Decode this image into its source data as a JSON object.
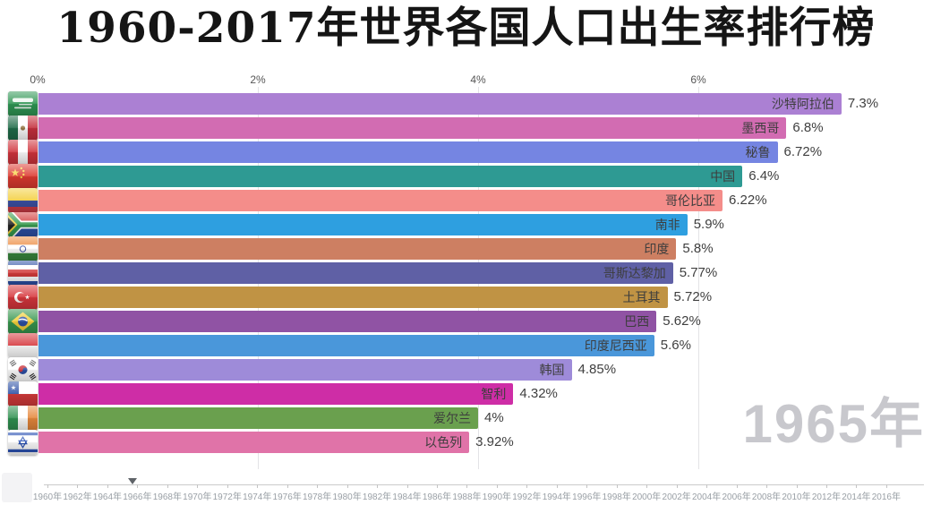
{
  "chart_data": {
    "type": "bar",
    "orientation": "horizontal-ranked",
    "title": "1960-2017年世界各国人口出生率排行榜",
    "current_year": "1965年",
    "value_unit": "%",
    "x_axis": {
      "tick_labels": [
        "0%",
        "2%",
        "4%",
        "6%"
      ],
      "tick_values": [
        0,
        2,
        4,
        6
      ],
      "range": [
        0,
        8.1
      ],
      "grid": true
    },
    "bars": [
      {
        "rank": 1,
        "country": "沙特阿拉伯",
        "value": 7.3,
        "value_label": "7.3%",
        "color": "#ab80d3",
        "flag_icon": "flag-saudi-arabia-icon",
        "flag": "saudi"
      },
      {
        "rank": 2,
        "country": "墨西哥",
        "value": 6.8,
        "value_label": "6.8%",
        "color": "#d26cb2",
        "flag_icon": "flag-mexico-icon",
        "flag": "mexico"
      },
      {
        "rank": 3,
        "country": "秘鲁",
        "value": 6.72,
        "value_label": "6.72%",
        "color": "#7585e2",
        "flag_icon": "flag-peru-icon",
        "flag": "peru"
      },
      {
        "rank": 4,
        "country": "中国",
        "value": 6.4,
        "value_label": "6.4%",
        "color": "#2e9a93",
        "flag_icon": "flag-china-icon",
        "flag": "china"
      },
      {
        "rank": 5,
        "country": "哥伦比亚",
        "value": 6.22,
        "value_label": "6.22%",
        "color": "#f48d8a",
        "flag_icon": "flag-colombia-icon",
        "flag": "colombia"
      },
      {
        "rank": 6,
        "country": "南非",
        "value": 5.9,
        "value_label": "5.9%",
        "color": "#2e9fe0",
        "flag_icon": "flag-south-africa-icon",
        "flag": "southafrica"
      },
      {
        "rank": 7,
        "country": "印度",
        "value": 5.8,
        "value_label": "5.8%",
        "color": "#cd7f62",
        "flag_icon": "flag-india-icon",
        "flag": "india"
      },
      {
        "rank": 8,
        "country": "哥斯达黎加",
        "value": 5.77,
        "value_label": "5.77%",
        "color": "#5f60a5",
        "flag_icon": "flag-costa-rica-icon",
        "flag": "costarica"
      },
      {
        "rank": 9,
        "country": "土耳其",
        "value": 5.72,
        "value_label": "5.72%",
        "color": "#c09344",
        "flag_icon": "flag-turkey-icon",
        "flag": "turkey"
      },
      {
        "rank": 10,
        "country": "巴西",
        "value": 5.62,
        "value_label": "5.62%",
        "color": "#9053a4",
        "flag_icon": "flag-brazil-icon",
        "flag": "brazil"
      },
      {
        "rank": 11,
        "country": "印度尼西亚",
        "value": 5.6,
        "value_label": "5.6%",
        "color": "#4a97da",
        "flag_icon": "flag-indonesia-icon",
        "flag": "indonesia"
      },
      {
        "rank": 12,
        "country": "韩国",
        "value": 4.85,
        "value_label": "4.85%",
        "color": "#9e8bd9",
        "flag_icon": "flag-south-korea-icon",
        "flag": "southkorea"
      },
      {
        "rank": 13,
        "country": "智利",
        "value": 4.32,
        "value_label": "4.32%",
        "color": "#ce2da6",
        "flag_icon": "flag-chile-icon",
        "flag": "chile"
      },
      {
        "rank": 14,
        "country": "爱尔兰",
        "value": 4,
        "value_label": "4%",
        "color": "#6aa04e",
        "flag_icon": "flag-ireland-icon",
        "flag": "ireland"
      },
      {
        "rank": 15,
        "country": "以色列",
        "value": 3.92,
        "value_label": "3.92%",
        "color": "#e073a8",
        "flag_icon": "flag-israel-icon",
        "flag": "israel"
      }
    ],
    "timeline": {
      "year_labels": [
        "1960年",
        "1962年",
        "1964年",
        "1966年",
        "1968年",
        "1970年",
        "1972年",
        "1974年",
        "1976年",
        "1978年",
        "1980年",
        "1982年",
        "1984年",
        "1986年",
        "1988年",
        "1990年",
        "1992年",
        "1994年",
        "1996年",
        "1998年",
        "2000年",
        "2002年",
        "2004年",
        "2006年",
        "2008年",
        "2010年",
        "2012年",
        "2014年",
        "2016年"
      ],
      "start_year": 1960,
      "end_year": 2016,
      "label_step_years": 2,
      "marker_icon": "triangle-down-icon",
      "marker_year": 1965.7
    }
  },
  "colors": {
    "title_text": "#151515",
    "axis_text": "#555555",
    "bar_label_text": "#3d3d3d",
    "gridline": "#e3e3e6",
    "watermark_text": "#c8c8cd",
    "timeline_text": "#9aa0a6",
    "timeline_line": "#cbcbcb"
  }
}
